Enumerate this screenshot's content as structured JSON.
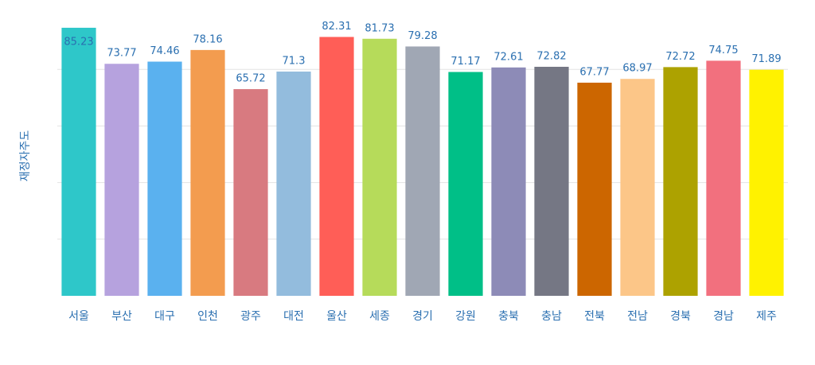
{
  "chart_data": {
    "type": "bar",
    "y_label": "재정자주도",
    "categories": [
      "서울",
      "부산",
      "대구",
      "인천",
      "광주",
      "대전",
      "울산",
      "세종",
      "경기",
      "강원",
      "충북",
      "충남",
      "전북",
      "전남",
      "경북",
      "경남",
      "제주"
    ],
    "values": [
      85.23,
      73.77,
      74.46,
      78.16,
      65.72,
      71.3,
      82.31,
      81.73,
      79.28,
      71.17,
      72.61,
      72.82,
      67.77,
      68.97,
      72.72,
      74.75,
      71.89
    ],
    "colors": [
      "#2ec7c9",
      "#b6a2de",
      "#5ab1ef",
      "#f39c4f",
      "#d87a80",
      "#93bcdd",
      "#ff5e57",
      "#b6db5a",
      "#a0a7b4",
      "#00bf87",
      "#8d8bb7",
      "#757784",
      "#cc6600",
      "#fcc688",
      "#ada200",
      "#f2707e",
      "#fff200"
    ],
    "ylim": [
      0,
      89
    ],
    "yticks": [
      18,
      36,
      54,
      72
    ],
    "grid": true
  }
}
